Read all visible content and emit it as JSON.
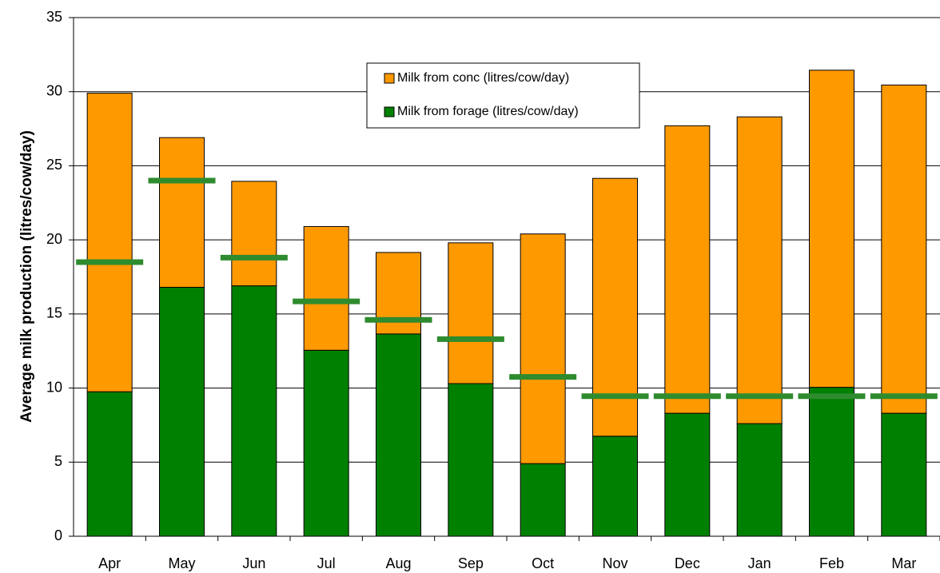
{
  "chart_data": {
    "type": "stacked-bar",
    "y_label": "Average milk production (litres/cow/day)",
    "categories": [
      "Apr",
      "May",
      "Jun",
      "Jul",
      "Aug",
      "Sep",
      "Oct",
      "Nov",
      "Dec",
      "Jan",
      "Feb",
      "Mar"
    ],
    "series": [
      {
        "name": "Milk from forage (litres/cow/day)",
        "color": "#008000",
        "values": [
          9.75,
          16.8,
          16.9,
          12.55,
          13.65,
          10.3,
          4.9,
          6.75,
          8.3,
          7.6,
          10.05,
          8.3
        ]
      },
      {
        "name": "Milk from conc (litres/cow/day)",
        "color": "#ff9900",
        "values": [
          20.15,
          10.1,
          7.05,
          8.35,
          5.5,
          9.5,
          15.5,
          17.4,
          19.4,
          20.7,
          21.4,
          22.15
        ]
      }
    ],
    "markers": {
      "color": "#2e8b2e",
      "values": [
        18.5,
        24.0,
        18.8,
        15.85,
        14.6,
        13.3,
        10.75,
        9.45,
        9.45,
        9.45,
        9.45,
        9.45
      ]
    },
    "ylim": [
      0,
      35
    ],
    "yticks": [
      0,
      5,
      10,
      15,
      20,
      25,
      30,
      35
    ],
    "grid": true
  }
}
